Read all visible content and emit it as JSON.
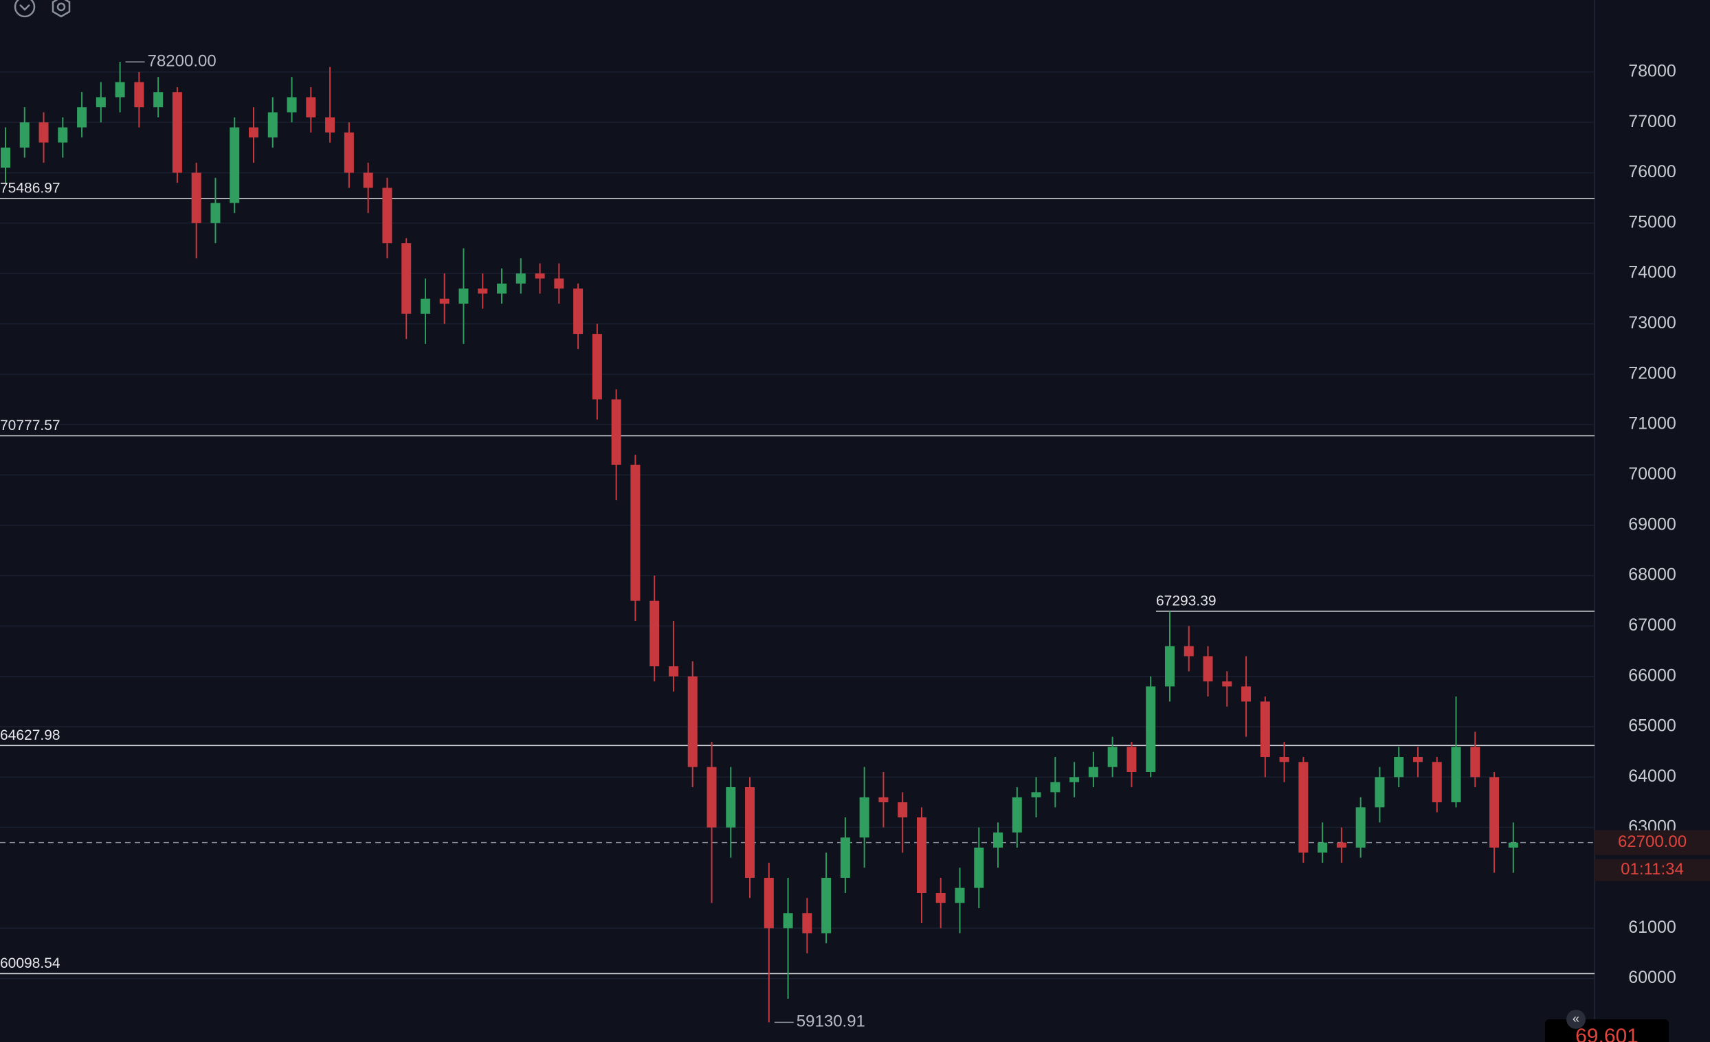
{
  "chart_data": {
    "type": "candlestick",
    "up_color": "#2f9e5e",
    "down_color": "#c8393f",
    "ylim": [
      58740,
      79430
    ],
    "yticks": [
      60000,
      61000,
      63000,
      64000,
      65000,
      66000,
      67000,
      68000,
      69000,
      70000,
      71000,
      72000,
      73000,
      74000,
      75000,
      76000,
      77000,
      78000
    ],
    "grid": true,
    "levels": [
      75486.97,
      70777.57,
      67293.39,
      64627.98,
      60098.54
    ],
    "high_marker": {
      "value": 78200,
      "label": "78200.00"
    },
    "low_marker": 59130.91,
    "current_price": {
      "value": 62700,
      "label": "62700.00"
    },
    "countdown": "01:11:34",
    "bottom_label": "69,601",
    "candles": [
      [
        76100,
        76900,
        75800,
        76500
      ],
      [
        76500,
        77300,
        76300,
        77000
      ],
      [
        77000,
        77200,
        76200,
        76600
      ],
      [
        76600,
        77100,
        76300,
        76900
      ],
      [
        76900,
        77600,
        76700,
        77300
      ],
      [
        77300,
        77800,
        77000,
        77500
      ],
      [
        77500,
        78200,
        77200,
        77800
      ],
      [
        77800,
        78000,
        76900,
        77300
      ],
      [
        77300,
        77900,
        77100,
        77600
      ],
      [
        77600,
        77700,
        75800,
        76000
      ],
      [
        76000,
        76200,
        74300,
        75000
      ],
      [
        75000,
        75900,
        74600,
        75400
      ],
      [
        75400,
        77100,
        75200,
        76900
      ],
      [
        76900,
        77300,
        76200,
        76700
      ],
      [
        76700,
        77500,
        76500,
        77200
      ],
      [
        77200,
        77900,
        77000,
        77500
      ],
      [
        77500,
        77700,
        76800,
        77100
      ],
      [
        77100,
        78100,
        76600,
        76800
      ],
      [
        76800,
        77000,
        75700,
        76000
      ],
      [
        76000,
        76200,
        75200,
        75700
      ],
      [
        75700,
        75900,
        74300,
        74600
      ],
      [
        74600,
        74700,
        72700,
        73200
      ],
      [
        73200,
        73900,
        72600,
        73500
      ],
      [
        73500,
        74000,
        73000,
        73400
      ],
      [
        73400,
        74500,
        72600,
        73700
      ],
      [
        73700,
        74000,
        73300,
        73600
      ],
      [
        73600,
        74100,
        73400,
        73800
      ],
      [
        73800,
        74300,
        73600,
        74000
      ],
      [
        74000,
        74200,
        73600,
        73900
      ],
      [
        73900,
        74200,
        73400,
        73700
      ],
      [
        73700,
        73800,
        72500,
        72800
      ],
      [
        72800,
        73000,
        71100,
        71500
      ],
      [
        71500,
        71700,
        69500,
        70200
      ],
      [
        70200,
        70400,
        67100,
        67500
      ],
      [
        67500,
        68000,
        65900,
        66200
      ],
      [
        66200,
        67100,
        65700,
        66000
      ],
      [
        66000,
        66300,
        63800,
        64200
      ],
      [
        64200,
        64700,
        61500,
        63000
      ],
      [
        63000,
        64200,
        62400,
        63800
      ],
      [
        63800,
        64000,
        61600,
        62000
      ],
      [
        62000,
        62300,
        59130.91,
        61000
      ],
      [
        61000,
        62000,
        59600,
        61300
      ],
      [
        61300,
        61600,
        60500,
        60900
      ],
      [
        60900,
        62500,
        60700,
        62000
      ],
      [
        62000,
        63200,
        61700,
        62800
      ],
      [
        62800,
        64200,
        62200,
        63600
      ],
      [
        63600,
        64100,
        63000,
        63500
      ],
      [
        63500,
        63700,
        62500,
        63200
      ],
      [
        63200,
        63400,
        61100,
        61700
      ],
      [
        61700,
        62000,
        61000,
        61500
      ],
      [
        61500,
        62200,
        60900,
        61800
      ],
      [
        61800,
        63000,
        61400,
        62600
      ],
      [
        62600,
        63100,
        62200,
        62900
      ],
      [
        62900,
        63800,
        62600,
        63600
      ],
      [
        63600,
        64000,
        63200,
        63700
      ],
      [
        63700,
        64400,
        63400,
        63900
      ],
      [
        63900,
        64300,
        63600,
        64000
      ],
      [
        64000,
        64500,
        63800,
        64200
      ],
      [
        64200,
        64800,
        64000,
        64600
      ],
      [
        64600,
        64700,
        63800,
        64100
      ],
      [
        64100,
        66000,
        64000,
        65800
      ],
      [
        65800,
        67293.39,
        65500,
        66600
      ],
      [
        66600,
        67000,
        66100,
        66400
      ],
      [
        66400,
        66600,
        65600,
        65900
      ],
      [
        65900,
        66100,
        65400,
        65800
      ],
      [
        65800,
        66400,
        64800,
        65500
      ],
      [
        65500,
        65600,
        64000,
        64400
      ],
      [
        64400,
        64700,
        63900,
        64300
      ],
      [
        64300,
        64400,
        62300,
        62500
      ],
      [
        62500,
        63100,
        62300,
        62700
      ],
      [
        62700,
        63000,
        62300,
        62600
      ],
      [
        62600,
        63600,
        62400,
        63400
      ],
      [
        63400,
        64200,
        63100,
        64000
      ],
      [
        64000,
        64600,
        63800,
        64400
      ],
      [
        64400,
        64600,
        64000,
        64300
      ],
      [
        64300,
        64400,
        63300,
        63500
      ],
      [
        63500,
        65600,
        63400,
        64600
      ],
      [
        64600,
        64900,
        63800,
        64000
      ],
      [
        64000,
        64100,
        62100,
        62600
      ],
      [
        62600,
        63100,
        62100,
        62700
      ]
    ]
  }
}
